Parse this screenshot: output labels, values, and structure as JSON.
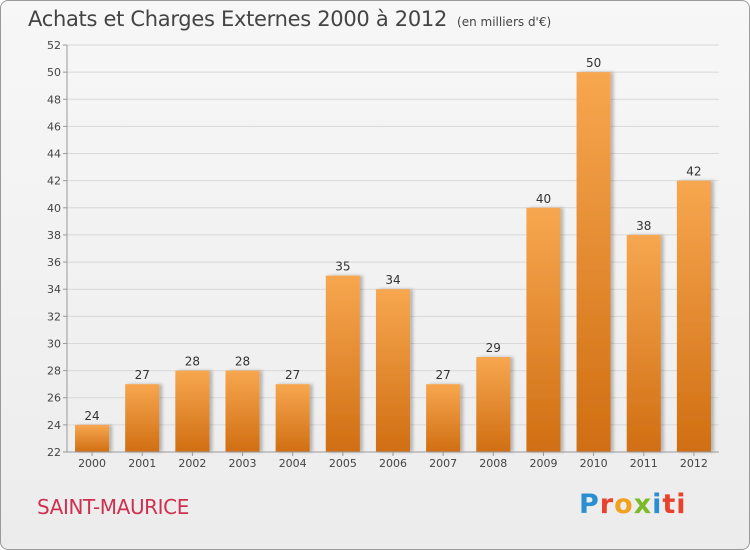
{
  "header": {
    "title": "Achats et Charges Externes 2000 à 2012",
    "unit": "(en milliers d'€)"
  },
  "footer": {
    "commune": "SAINT-MAURICE",
    "logo_letters": [
      "P",
      "r",
      "o",
      "x",
      "i",
      "ti"
    ]
  },
  "colors": {
    "bar_top": "#f7a750",
    "bar_bottom": "#d06e12",
    "title": "#444444",
    "commune": "#d0304f",
    "grid": "#d8d8d8",
    "axis": "#999999"
  },
  "chart_data": {
    "type": "bar",
    "categories": [
      "2000",
      "2001",
      "2002",
      "2003",
      "2004",
      "2005",
      "2006",
      "2007",
      "2008",
      "2009",
      "2010",
      "2011",
      "2012"
    ],
    "values": [
      24,
      27,
      28,
      28,
      27,
      35,
      34,
      27,
      29,
      40,
      50,
      38,
      42
    ],
    "data_labels": [
      "24",
      "27",
      "28",
      "28",
      "27",
      "35",
      "34",
      "27",
      "29",
      "40",
      "50",
      "38",
      "42"
    ],
    "ylim": [
      22,
      52
    ],
    "yticks": [
      22,
      24,
      26,
      28,
      30,
      32,
      34,
      36,
      38,
      40,
      42,
      44,
      46,
      48,
      50,
      52
    ],
    "ytick_labels": [
      "22",
      "24",
      "26",
      "28",
      "30",
      "32",
      "34",
      "36",
      "38",
      "40",
      "42",
      "44",
      "46",
      "48",
      "50",
      "52"
    ],
    "grid": true,
    "legend": "none"
  }
}
